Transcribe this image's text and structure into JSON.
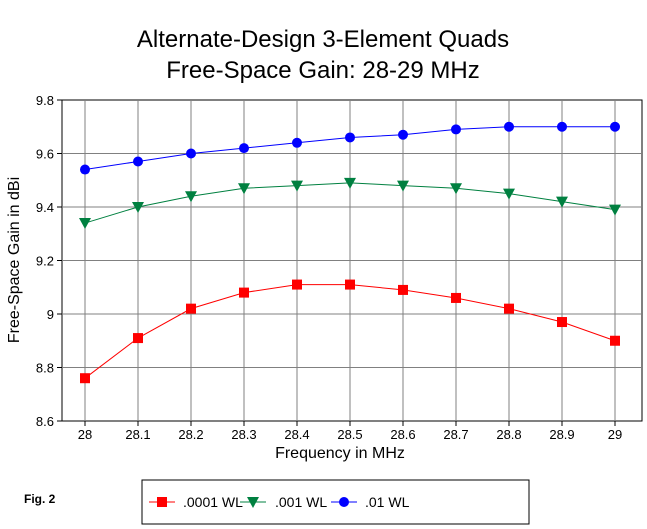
{
  "chart_data": {
    "type": "line",
    "title": [
      "Alternate-Design 3-Element Quads",
      "Free-Space Gain:  28-29 MHz"
    ],
    "xlabel": "Frequency in MHz",
    "ylabel": "Free-Space Gain in dBi",
    "x": [
      28,
      28.1,
      28.2,
      28.3,
      28.4,
      28.5,
      28.6,
      28.7,
      28.8,
      28.9,
      29
    ],
    "x_tick_labels": [
      "28",
      "28.1",
      "28.2",
      "28.3",
      "28.4",
      "28.5",
      "28.6",
      "28.7",
      "28.8",
      "28.9",
      "29"
    ],
    "y_ticks": [
      8.6,
      8.8,
      9,
      9.2,
      9.4,
      9.6,
      9.8
    ],
    "y_tick_labels": [
      "8.6",
      "8.8",
      "9",
      "9.2",
      "9.4",
      "9.6",
      "9.8"
    ],
    "ylim": [
      8.6,
      9.8
    ],
    "grid": true,
    "legend_placement": "bottom",
    "series": [
      {
        "name": ".0001 WL",
        "color": "#ff0000",
        "marker": "square",
        "values": [
          8.76,
          8.91,
          9.02,
          9.08,
          9.11,
          9.11,
          9.09,
          9.06,
          9.02,
          8.97,
          8.9
        ]
      },
      {
        "name": ".001 WL",
        "color": "#008040",
        "marker": "triangle-down",
        "values": [
          9.34,
          9.4,
          9.44,
          9.47,
          9.48,
          9.49,
          9.48,
          9.47,
          9.45,
          9.42,
          9.39
        ]
      },
      {
        "name": ".01 WL",
        "color": "#0000ff",
        "marker": "circle",
        "values": [
          9.54,
          9.57,
          9.6,
          9.62,
          9.64,
          9.66,
          9.67,
          9.69,
          9.7,
          9.7,
          9.7
        ]
      }
    ]
  },
  "figure_label": "Fig. 2"
}
